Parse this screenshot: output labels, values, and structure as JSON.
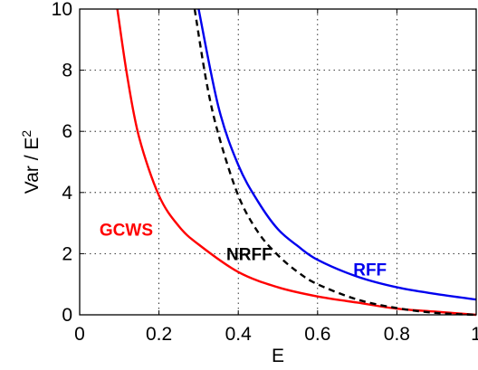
{
  "chart_data": {
    "type": "line",
    "xlabel": "E",
    "ylabel": "Var / E",
    "ylabel_superscript": "2",
    "xlim": [
      0,
      1
    ],
    "ylim": [
      0,
      10
    ],
    "x_ticks": [
      "0",
      "0.2",
      "0.4",
      "0.6",
      "0.8",
      "1"
    ],
    "y_ticks": [
      "0",
      "2",
      "4",
      "6",
      "8",
      "10"
    ],
    "grid": true,
    "series": [
      {
        "name": "GCWS",
        "color": "#ff0000",
        "style": "solid",
        "x": [
          0.095,
          0.12,
          0.15,
          0.2,
          0.25,
          0.3,
          0.4,
          0.5,
          0.6,
          0.7,
          0.8,
          0.9,
          1.0
        ],
        "y": [
          10,
          7.8,
          5.8,
          3.9,
          2.9,
          2.3,
          1.4,
          0.9,
          0.6,
          0.4,
          0.2,
          0.1,
          0.0
        ]
      },
      {
        "name": "NRFF",
        "color": "#000000",
        "style": "dashed",
        "x": [
          0.29,
          0.32,
          0.35,
          0.4,
          0.45,
          0.5,
          0.55,
          0.6,
          0.7,
          0.8,
          0.9,
          1.0
        ],
        "y": [
          10,
          7.6,
          5.9,
          3.9,
          2.7,
          1.95,
          1.4,
          1.0,
          0.5,
          0.22,
          0.06,
          0.0
        ]
      },
      {
        "name": "RFF",
        "color": "#0000ee",
        "style": "solid",
        "x": [
          0.3,
          0.35,
          0.4,
          0.45,
          0.5,
          0.55,
          0.6,
          0.7,
          0.8,
          0.9,
          1.0
        ],
        "y": [
          10,
          6.8,
          4.9,
          3.7,
          2.8,
          2.25,
          1.8,
          1.25,
          0.9,
          0.68,
          0.5
        ]
      }
    ],
    "annotations": [
      {
        "text": "GCWS",
        "x": 0.05,
        "y": 2.8,
        "color": "#ff0000"
      },
      {
        "text": "NRFF",
        "x": 0.37,
        "y": 2.0,
        "color": "#000000"
      },
      {
        "text": "RFF",
        "x": 0.69,
        "y": 1.5,
        "color": "#0000ee"
      }
    ]
  }
}
